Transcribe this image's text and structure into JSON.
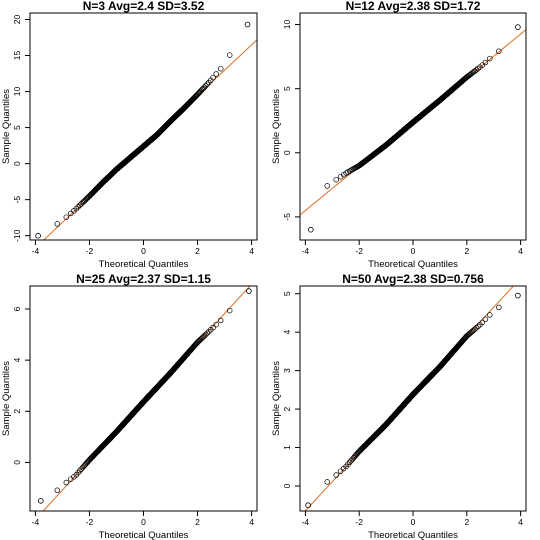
{
  "chart_data": [
    {
      "type": "scatter",
      "subtype": "qq-plot",
      "title": "N=3 Avg=2.4 SD=3.52",
      "xlabel": "Theoretical Quantiles",
      "ylabel": "Sample Quantiles",
      "xlim": [
        -4.2,
        4.2
      ],
      "ylim": [
        -10.6,
        20.9
      ],
      "xticks": [
        -4,
        -2,
        0,
        2,
        4
      ],
      "yticks": [
        -10,
        -5,
        0,
        5,
        10,
        15,
        20
      ],
      "reference_line": {
        "intercept": 2.4,
        "slope": 3.52
      },
      "quantile_curve": [
        [
          -3.9,
          -10.0
        ],
        [
          -3.6,
          -9.2
        ],
        [
          -3.2,
          -8.4
        ],
        [
          -3.0,
          -7.9
        ],
        [
          -2.5,
          -6.3
        ],
        [
          -2,
          -4.5
        ],
        [
          -1.5,
          -2.6
        ],
        [
          -1,
          -0.8
        ],
        [
          -0.5,
          0.8
        ],
        [
          0,
          2.4
        ],
        [
          0.5,
          4.0
        ],
        [
          1,
          5.9
        ],
        [
          1.5,
          7.7
        ],
        [
          2,
          9.6
        ],
        [
          2.5,
          11.6
        ],
        [
          3,
          13.8
        ],
        [
          3.3,
          15.8
        ],
        [
          3.5,
          17.0
        ],
        [
          3.7,
          18.2
        ],
        [
          3.85,
          19.3
        ]
      ],
      "grid": false
    },
    {
      "type": "scatter",
      "subtype": "qq-plot",
      "title": "N=12 Avg=2.38 SD=1.72",
      "xlabel": "Theoretical Quantiles",
      "ylabel": "Sample Quantiles",
      "xlim": [
        -4.2,
        4.2
      ],
      "ylim": [
        -6.8,
        10.9
      ],
      "xticks": [
        -4,
        -2,
        0,
        2,
        4
      ],
      "yticks": [
        -5,
        0,
        5,
        10
      ],
      "reference_line": {
        "intercept": 2.38,
        "slope": 1.72
      },
      "quantile_curve": [
        [
          -3.8,
          -6.0
        ],
        [
          -3.6,
          -3.2
        ],
        [
          -3.2,
          -2.6
        ],
        [
          -3,
          -2.3
        ],
        [
          -2.5,
          -1.6
        ],
        [
          -2,
          -1.0
        ],
        [
          -1,
          0.6
        ],
        [
          0,
          2.38
        ],
        [
          1,
          4.1
        ],
        [
          2,
          5.9
        ],
        [
          2.5,
          6.7
        ],
        [
          3,
          7.6
        ],
        [
          3.3,
          8.1
        ],
        [
          3.5,
          8.5
        ],
        [
          3.6,
          8.9
        ],
        [
          3.7,
          9.4
        ],
        [
          3.9,
          9.8
        ]
      ],
      "grid": false
    },
    {
      "type": "scatter",
      "subtype": "qq-plot",
      "title": "N=25 Avg=2.37 SD=1.15",
      "xlabel": "Theoretical Quantiles",
      "ylabel": "Sample Quantiles",
      "xlim": [
        -4.2,
        4.2
      ],
      "ylim": [
        -1.9,
        6.9
      ],
      "xticks": [
        -4,
        -2,
        0,
        2,
        4
      ],
      "yticks": [
        0,
        2,
        4,
        6
      ],
      "reference_line": {
        "intercept": 2.37,
        "slope": 1.15
      },
      "quantile_curve": [
        [
          -3.8,
          -1.5
        ],
        [
          -3.6,
          -1.5
        ],
        [
          -3.4,
          -1.2
        ],
        [
          -3.2,
          -1.1
        ],
        [
          -3,
          -0.9
        ],
        [
          -2.5,
          -0.5
        ],
        [
          -2,
          0.1
        ],
        [
          -1,
          1.2
        ],
        [
          0,
          2.37
        ],
        [
          1,
          3.5
        ],
        [
          2,
          4.7
        ],
        [
          2.5,
          5.2
        ],
        [
          3,
          5.7
        ],
        [
          3.4,
          6.2
        ],
        [
          3.7,
          6.6
        ],
        [
          3.9,
          6.7
        ]
      ],
      "grid": false
    },
    {
      "type": "scatter",
      "subtype": "qq-plot",
      "title": "N=50 Avg=2.38 SD=0.756",
      "xlabel": "Theoretical Quantiles",
      "ylabel": "Sample Quantiles",
      "xlim": [
        -4.2,
        4.2
      ],
      "ylim": [
        -0.65,
        5.2
      ],
      "xticks": [
        -4,
        -2,
        0,
        2,
        4
      ],
      "yticks": [
        0,
        1,
        2,
        3,
        4,
        5
      ],
      "reference_line": {
        "intercept": 2.38,
        "slope": 0.756
      },
      "quantile_curve": [
        [
          -3.9,
          -0.5
        ],
        [
          -3.6,
          -0.35
        ],
        [
          -3.4,
          -0.1
        ],
        [
          -3.2,
          0.1
        ],
        [
          -3,
          0.2
        ],
        [
          -2.5,
          0.5
        ],
        [
          -2,
          0.9
        ],
        [
          -1,
          1.6
        ],
        [
          0,
          2.38
        ],
        [
          1,
          3.1
        ],
        [
          2,
          3.9
        ],
        [
          2.5,
          4.2
        ],
        [
          3,
          4.55
        ],
        [
          3.3,
          4.7
        ],
        [
          3.6,
          4.8
        ],
        [
          3.9,
          4.95
        ]
      ],
      "grid": false
    }
  ]
}
